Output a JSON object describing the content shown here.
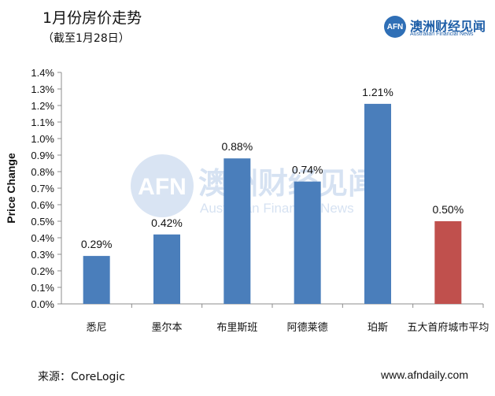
{
  "header": {
    "title": "1月份房价走势",
    "subtitle": "（截至1月28日）"
  },
  "logo": {
    "mark": "AFN",
    "name": "澳洲财经见闻",
    "tagline": "Australian Financial News"
  },
  "watermark": {
    "mark": "AFN",
    "name": "澳洲财经见闻",
    "tagline": "Australian Financial News"
  },
  "footer": {
    "source": "来源：CoreLogic",
    "site": "www.afndaily.com"
  },
  "colors": {
    "bar": "#4a7ebb",
    "highlight": "#c0504d",
    "axis": "#8c8c8c",
    "watermark": "#c9d9ee"
  },
  "chart_data": {
    "type": "bar",
    "categories": [
      "悉尼",
      "墨尔本",
      "布里斯班",
      "阿德莱德",
      "珀斯",
      "五大首府城市平均"
    ],
    "values": [
      0.29,
      0.42,
      0.88,
      0.74,
      1.21,
      0.5
    ],
    "data_labels": [
      "0.29%",
      "0.42%",
      "0.88%",
      "0.74%",
      "1.21%",
      "0.50%"
    ],
    "bar_colors": [
      "#4a7ebb",
      "#4a7ebb",
      "#4a7ebb",
      "#4a7ebb",
      "#4a7ebb",
      "#c0504d"
    ],
    "ylabel": "Price Change",
    "xlabel": "",
    "ylim": [
      0,
      1.4
    ],
    "yticks": [
      0,
      0.1,
      0.2,
      0.3,
      0.4,
      0.5,
      0.6,
      0.7,
      0.8,
      0.9,
      1.0,
      1.1,
      1.2,
      1.3,
      1.4
    ],
    "ytick_labels": [
      "0.0%",
      "0.1%",
      "0.2%",
      "0.3%",
      "0.4%",
      "0.5%",
      "0.6%",
      "0.7%",
      "0.8%",
      "0.9%",
      "1.0%",
      "1.1%",
      "1.2%",
      "1.3%",
      "1.4%"
    ],
    "grid": false,
    "legend": "none"
  }
}
